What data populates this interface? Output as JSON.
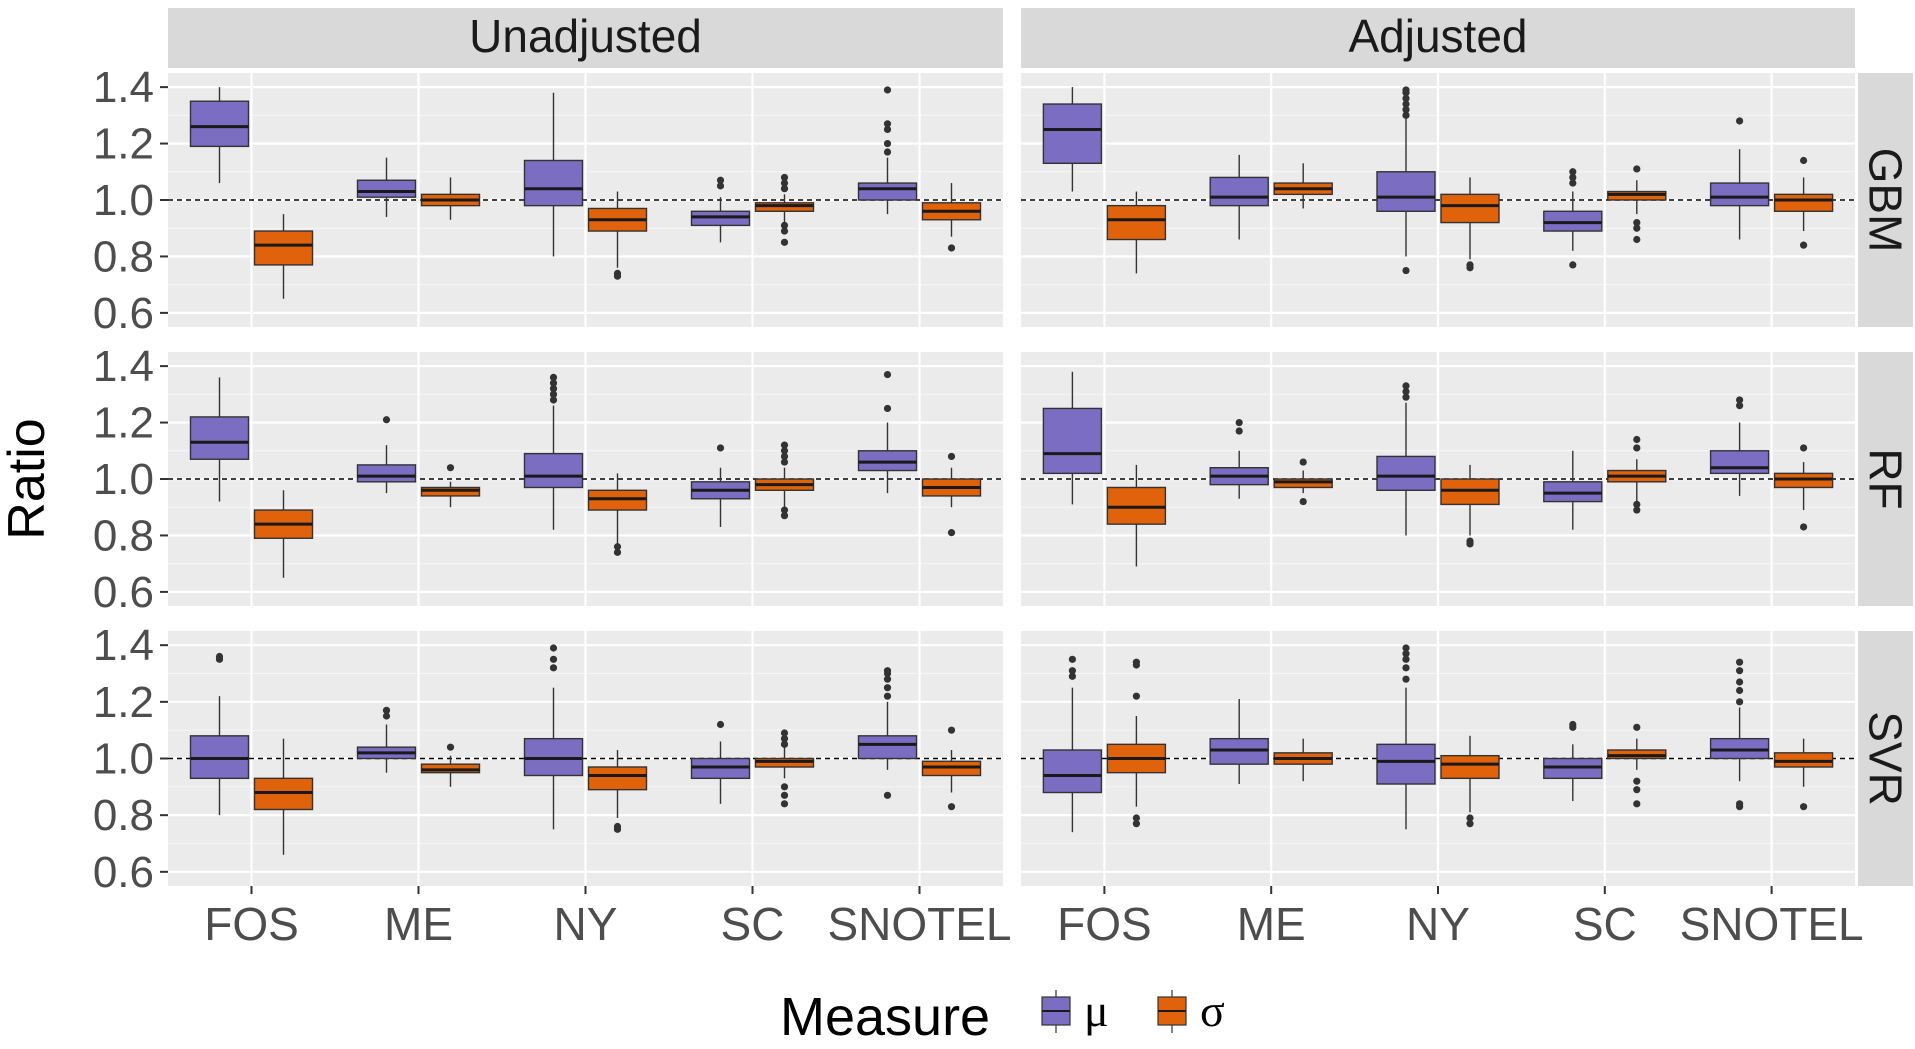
{
  "chart_data": {
    "type": "boxplot",
    "ylabel": "Ratio",
    "ylim": [
      0.55,
      1.45
    ],
    "yticks": [
      0.6,
      0.8,
      1.0,
      1.2,
      1.4
    ],
    "ytick_labels": [
      "0.6",
      "0.8",
      "1.0",
      "1.2",
      "1.4"
    ],
    "reference_line": 1.0,
    "categories": [
      "FOS",
      "ME",
      "NY",
      "SC",
      "SNOTEL"
    ],
    "columns": [
      "Unadjusted",
      "Adjusted"
    ],
    "rows": [
      "GBM",
      "RF",
      "SVR"
    ],
    "grid": true,
    "legend": {
      "title": "Measure",
      "position": "bottom",
      "entries": [
        {
          "label": "μ",
          "color": "#7B6DC1"
        },
        {
          "label": "σ",
          "color": "#E0620A"
        }
      ]
    },
    "panels": [
      {
        "row": "GBM",
        "col": "Unadjusted",
        "boxes": [
          {
            "category": "FOS",
            "measure": "μ",
            "min": 1.06,
            "q1": 1.19,
            "median": 1.26,
            "q3": 1.35,
            "max": 1.4,
            "outliers": []
          },
          {
            "category": "FOS",
            "measure": "σ",
            "min": 0.65,
            "q1": 0.77,
            "median": 0.84,
            "q3": 0.89,
            "max": 0.95,
            "outliers": []
          },
          {
            "category": "ME",
            "measure": "μ",
            "min": 0.94,
            "q1": 1.01,
            "median": 1.03,
            "q3": 1.07,
            "max": 1.15,
            "outliers": []
          },
          {
            "category": "ME",
            "measure": "σ",
            "min": 0.93,
            "q1": 0.98,
            "median": 1.0,
            "q3": 1.02,
            "max": 1.08,
            "outliers": []
          },
          {
            "category": "NY",
            "measure": "μ",
            "min": 0.8,
            "q1": 0.98,
            "median": 1.04,
            "q3": 1.14,
            "max": 1.38,
            "outliers": []
          },
          {
            "category": "NY",
            "measure": "σ",
            "min": 0.76,
            "q1": 0.89,
            "median": 0.93,
            "q3": 0.97,
            "max": 1.03,
            "outliers": [
              0.73,
              0.74
            ]
          },
          {
            "category": "SC",
            "measure": "μ",
            "min": 0.85,
            "q1": 0.91,
            "median": 0.94,
            "q3": 0.96,
            "max": 1.01,
            "outliers": [
              1.05,
              1.07
            ]
          },
          {
            "category": "SC",
            "measure": "σ",
            "min": 0.92,
            "q1": 0.96,
            "median": 0.98,
            "q3": 0.99,
            "max": 1.02,
            "outliers": [
              0.85,
              0.89,
              0.91,
              1.04,
              1.06,
              1.08
            ]
          },
          {
            "category": "SNOTEL",
            "measure": "μ",
            "min": 0.95,
            "q1": 1.0,
            "median": 1.04,
            "q3": 1.06,
            "max": 1.15,
            "outliers": [
              1.17,
              1.2,
              1.25,
              1.27,
              1.39
            ]
          },
          {
            "category": "SNOTEL",
            "measure": "σ",
            "min": 0.87,
            "q1": 0.93,
            "median": 0.96,
            "q3": 0.99,
            "max": 1.06,
            "outliers": [
              0.83
            ]
          }
        ]
      },
      {
        "row": "GBM",
        "col": "Adjusted",
        "boxes": [
          {
            "category": "FOS",
            "measure": "μ",
            "min": 1.03,
            "q1": 1.13,
            "median": 1.25,
            "q3": 1.34,
            "max": 1.4,
            "outliers": []
          },
          {
            "category": "FOS",
            "measure": "σ",
            "min": 0.74,
            "q1": 0.86,
            "median": 0.93,
            "q3": 0.98,
            "max": 1.03,
            "outliers": []
          },
          {
            "category": "ME",
            "measure": "μ",
            "min": 0.86,
            "q1": 0.98,
            "median": 1.01,
            "q3": 1.08,
            "max": 1.16,
            "outliers": []
          },
          {
            "category": "ME",
            "measure": "σ",
            "min": 0.97,
            "q1": 1.02,
            "median": 1.04,
            "q3": 1.06,
            "max": 1.13,
            "outliers": []
          },
          {
            "category": "NY",
            "measure": "μ",
            "min": 0.8,
            "q1": 0.96,
            "median": 1.01,
            "q3": 1.1,
            "max": 1.29,
            "outliers": [
              0.75,
              1.3,
              1.32,
              1.34,
              1.36,
              1.38,
              1.39
            ]
          },
          {
            "category": "NY",
            "measure": "σ",
            "min": 0.79,
            "q1": 0.92,
            "median": 0.98,
            "q3": 1.02,
            "max": 1.08,
            "outliers": [
              0.76,
              0.77
            ]
          },
          {
            "category": "SC",
            "measure": "μ",
            "min": 0.82,
            "q1": 0.89,
            "median": 0.92,
            "q3": 0.96,
            "max": 1.03,
            "outliers": [
              0.77,
              1.06,
              1.08,
              1.1
            ]
          },
          {
            "category": "SC",
            "measure": "σ",
            "min": 0.95,
            "q1": 1.0,
            "median": 1.02,
            "q3": 1.03,
            "max": 1.07,
            "outliers": [
              0.86,
              0.9,
              0.92,
              1.11
            ]
          },
          {
            "category": "SNOTEL",
            "measure": "μ",
            "min": 0.86,
            "q1": 0.98,
            "median": 1.01,
            "q3": 1.06,
            "max": 1.18,
            "outliers": [
              1.28
            ]
          },
          {
            "category": "SNOTEL",
            "measure": "σ",
            "min": 0.89,
            "q1": 0.96,
            "median": 1.0,
            "q3": 1.02,
            "max": 1.08,
            "outliers": [
              0.84,
              1.14
            ]
          }
        ]
      },
      {
        "row": "RF",
        "col": "Unadjusted",
        "boxes": [
          {
            "category": "FOS",
            "measure": "μ",
            "min": 0.92,
            "q1": 1.07,
            "median": 1.13,
            "q3": 1.22,
            "max": 1.36,
            "outliers": []
          },
          {
            "category": "FOS",
            "measure": "σ",
            "min": 0.65,
            "q1": 0.79,
            "median": 0.84,
            "q3": 0.89,
            "max": 0.96,
            "outliers": []
          },
          {
            "category": "ME",
            "measure": "μ",
            "min": 0.95,
            "q1": 0.99,
            "median": 1.01,
            "q3": 1.05,
            "max": 1.12,
            "outliers": [
              1.21
            ]
          },
          {
            "category": "ME",
            "measure": "σ",
            "min": 0.9,
            "q1": 0.94,
            "median": 0.96,
            "q3": 0.97,
            "max": 0.99,
            "outliers": [
              1.04
            ]
          },
          {
            "category": "NY",
            "measure": "μ",
            "min": 0.82,
            "q1": 0.97,
            "median": 1.01,
            "q3": 1.09,
            "max": 1.26,
            "outliers": [
              1.28,
              1.3,
              1.32,
              1.34,
              1.36
            ]
          },
          {
            "category": "NY",
            "measure": "σ",
            "min": 0.77,
            "q1": 0.89,
            "median": 0.93,
            "q3": 0.96,
            "max": 1.02,
            "outliers": [
              0.74,
              0.76
            ]
          },
          {
            "category": "SC",
            "measure": "μ",
            "min": 0.83,
            "q1": 0.93,
            "median": 0.96,
            "q3": 0.99,
            "max": 1.04,
            "outliers": [
              1.11
            ]
          },
          {
            "category": "SC",
            "measure": "σ",
            "min": 0.9,
            "q1": 0.96,
            "median": 0.98,
            "q3": 1.0,
            "max": 1.04,
            "outliers": [
              0.87,
              0.89,
              1.06,
              1.08,
              1.1,
              1.12
            ]
          },
          {
            "category": "SNOTEL",
            "measure": "μ",
            "min": 0.95,
            "q1": 1.03,
            "median": 1.06,
            "q3": 1.1,
            "max": 1.2,
            "outliers": [
              1.25,
              1.37
            ]
          },
          {
            "category": "SNOTEL",
            "measure": "σ",
            "min": 0.9,
            "q1": 0.94,
            "median": 0.97,
            "q3": 1.0,
            "max": 1.04,
            "outliers": [
              0.81,
              1.08
            ]
          }
        ]
      },
      {
        "row": "RF",
        "col": "Adjusted",
        "boxes": [
          {
            "category": "FOS",
            "measure": "μ",
            "min": 0.91,
            "q1": 1.02,
            "median": 1.09,
            "q3": 1.25,
            "max": 1.38,
            "outliers": []
          },
          {
            "category": "FOS",
            "measure": "σ",
            "min": 0.69,
            "q1": 0.84,
            "median": 0.9,
            "q3": 0.97,
            "max": 1.05,
            "outliers": []
          },
          {
            "category": "ME",
            "measure": "μ",
            "min": 0.93,
            "q1": 0.98,
            "median": 1.01,
            "q3": 1.04,
            "max": 1.1,
            "outliers": [
              1.17,
              1.2
            ]
          },
          {
            "category": "ME",
            "measure": "σ",
            "min": 0.95,
            "q1": 0.97,
            "median": 0.99,
            "q3": 1.0,
            "max": 1.03,
            "outliers": [
              0.92,
              1.06
            ]
          },
          {
            "category": "NY",
            "measure": "μ",
            "min": 0.8,
            "q1": 0.96,
            "median": 1.01,
            "q3": 1.08,
            "max": 1.27,
            "outliers": [
              1.29,
              1.31,
              1.33
            ]
          },
          {
            "category": "NY",
            "measure": "σ",
            "min": 0.8,
            "q1": 0.91,
            "median": 0.96,
            "q3": 1.0,
            "max": 1.05,
            "outliers": [
              0.77,
              0.78
            ]
          },
          {
            "category": "SC",
            "measure": "μ",
            "min": 0.82,
            "q1": 0.92,
            "median": 0.95,
            "q3": 0.99,
            "max": 1.1,
            "outliers": []
          },
          {
            "category": "SC",
            "measure": "σ",
            "min": 0.92,
            "q1": 0.99,
            "median": 1.01,
            "q3": 1.03,
            "max": 1.07,
            "outliers": [
              0.89,
              0.91,
              1.11,
              1.14
            ]
          },
          {
            "category": "SNOTEL",
            "measure": "μ",
            "min": 0.94,
            "q1": 1.02,
            "median": 1.04,
            "q3": 1.1,
            "max": 1.2,
            "outliers": [
              1.26,
              1.28
            ]
          },
          {
            "category": "SNOTEL",
            "measure": "σ",
            "min": 0.89,
            "q1": 0.97,
            "median": 1.0,
            "q3": 1.02,
            "max": 1.06,
            "outliers": [
              0.83,
              1.11
            ]
          }
        ]
      },
      {
        "row": "SVR",
        "col": "Unadjusted",
        "boxes": [
          {
            "category": "FOS",
            "measure": "μ",
            "min": 0.8,
            "q1": 0.93,
            "median": 1.0,
            "q3": 1.08,
            "max": 1.22,
            "outliers": [
              1.35,
              1.36
            ]
          },
          {
            "category": "FOS",
            "measure": "σ",
            "min": 0.66,
            "q1": 0.82,
            "median": 0.88,
            "q3": 0.93,
            "max": 1.07,
            "outliers": []
          },
          {
            "category": "ME",
            "measure": "μ",
            "min": 0.95,
            "q1": 1.0,
            "median": 1.02,
            "q3": 1.04,
            "max": 1.12,
            "outliers": [
              1.15,
              1.17
            ]
          },
          {
            "category": "ME",
            "measure": "σ",
            "min": 0.9,
            "q1": 0.95,
            "median": 0.96,
            "q3": 0.98,
            "max": 1.01,
            "outliers": [
              1.04
            ]
          },
          {
            "category": "NY",
            "measure": "μ",
            "min": 0.75,
            "q1": 0.94,
            "median": 1.0,
            "q3": 1.07,
            "max": 1.25,
            "outliers": [
              1.32,
              1.35,
              1.39
            ]
          },
          {
            "category": "NY",
            "measure": "σ",
            "min": 0.79,
            "q1": 0.89,
            "median": 0.94,
            "q3": 0.97,
            "max": 1.03,
            "outliers": [
              0.75,
              0.76
            ]
          },
          {
            "category": "SC",
            "measure": "μ",
            "min": 0.84,
            "q1": 0.93,
            "median": 0.97,
            "q3": 1.0,
            "max": 1.06,
            "outliers": [
              1.12
            ]
          },
          {
            "category": "SC",
            "measure": "σ",
            "min": 0.93,
            "q1": 0.97,
            "median": 0.99,
            "q3": 1.0,
            "max": 1.04,
            "outliers": [
              0.84,
              0.87,
              0.9,
              1.05,
              1.07,
              1.09
            ]
          },
          {
            "category": "SNOTEL",
            "measure": "μ",
            "min": 0.96,
            "q1": 1.0,
            "median": 1.05,
            "q3": 1.08,
            "max": 1.2,
            "outliers": [
              0.87,
              1.22,
              1.25,
              1.28,
              1.3,
              1.31
            ]
          },
          {
            "category": "SNOTEL",
            "measure": "σ",
            "min": 0.88,
            "q1": 0.94,
            "median": 0.97,
            "q3": 0.99,
            "max": 1.03,
            "outliers": [
              0.83,
              1.1
            ]
          }
        ]
      },
      {
        "row": "SVR",
        "col": "Adjusted",
        "boxes": [
          {
            "category": "FOS",
            "measure": "μ",
            "min": 0.74,
            "q1": 0.88,
            "median": 0.94,
            "q3": 1.03,
            "max": 1.25,
            "outliers": [
              1.29,
              1.31,
              1.35
            ]
          },
          {
            "category": "FOS",
            "measure": "σ",
            "min": 0.83,
            "q1": 0.95,
            "median": 1.0,
            "q3": 1.05,
            "max": 1.15,
            "outliers": [
              0.77,
              0.79,
              1.22,
              1.33,
              1.34
            ]
          },
          {
            "category": "ME",
            "measure": "μ",
            "min": 0.91,
            "q1": 0.98,
            "median": 1.03,
            "q3": 1.07,
            "max": 1.21,
            "outliers": []
          },
          {
            "category": "ME",
            "measure": "σ",
            "min": 0.92,
            "q1": 0.98,
            "median": 1.0,
            "q3": 1.02,
            "max": 1.07,
            "outliers": []
          },
          {
            "category": "NY",
            "measure": "μ",
            "min": 0.75,
            "q1": 0.91,
            "median": 0.99,
            "q3": 1.05,
            "max": 1.25,
            "outliers": [
              1.28,
              1.32,
              1.35,
              1.37,
              1.39
            ]
          },
          {
            "category": "NY",
            "measure": "σ",
            "min": 0.81,
            "q1": 0.93,
            "median": 0.98,
            "q3": 1.01,
            "max": 1.08,
            "outliers": [
              0.77,
              0.79
            ]
          },
          {
            "category": "SC",
            "measure": "μ",
            "min": 0.85,
            "q1": 0.93,
            "median": 0.97,
            "q3": 1.0,
            "max": 1.05,
            "outliers": [
              1.11,
              1.12
            ]
          },
          {
            "category": "SC",
            "measure": "σ",
            "min": 0.96,
            "q1": 1.0,
            "median": 1.01,
            "q3": 1.03,
            "max": 1.07,
            "outliers": [
              0.84,
              0.89,
              0.92,
              1.11
            ]
          },
          {
            "category": "SNOTEL",
            "measure": "μ",
            "min": 0.92,
            "q1": 1.0,
            "median": 1.03,
            "q3": 1.07,
            "max": 1.18,
            "outliers": [
              0.83,
              0.84,
              1.2,
              1.24,
              1.27,
              1.31,
              1.34
            ]
          },
          {
            "category": "SNOTEL",
            "measure": "σ",
            "min": 0.9,
            "q1": 0.97,
            "median": 0.99,
            "q3": 1.02,
            "max": 1.07,
            "outliers": [
              0.83
            ]
          }
        ]
      }
    ]
  }
}
